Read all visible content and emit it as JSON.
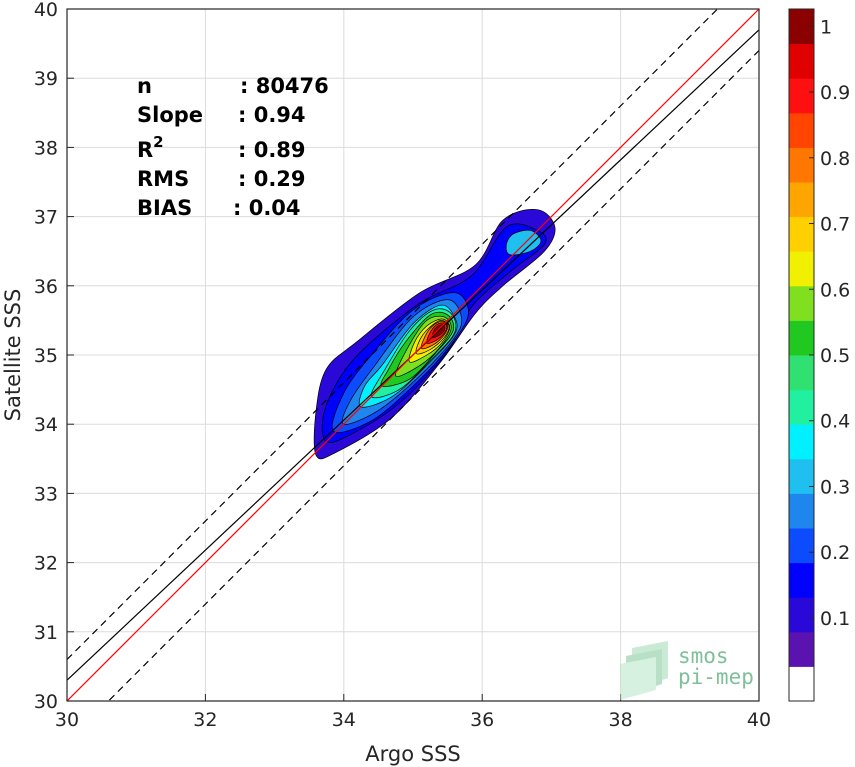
{
  "chart_data": {
    "type": "heatmap",
    "xlabel": "Argo SSS",
    "ylabel": "Satellite SSS",
    "xlim": [
      30,
      40
    ],
    "ylim": [
      30,
      40
    ],
    "xticks": [
      "30",
      "32",
      "34",
      "36",
      "38",
      "40"
    ],
    "yticks": [
      "30",
      "31",
      "32",
      "33",
      "34",
      "35",
      "36",
      "37",
      "38",
      "39",
      "40"
    ],
    "grid": true,
    "stats": [
      {
        "key": "n",
        "value": ": 80476"
      },
      {
        "key": "Slope",
        "value": ": 0.94"
      },
      {
        "key": "R",
        "sup": "2",
        "value": ": 0.89"
      },
      {
        "key": "RMS",
        "value": ": 0.29"
      },
      {
        "key": "BIAS",
        "value": ": 0.04"
      }
    ],
    "lines": [
      {
        "name": "identity",
        "color": "#ff0000",
        "style": "solid",
        "slope": 1.0,
        "intercept": 0.0
      },
      {
        "name": "fit",
        "color": "#000000",
        "style": "solid",
        "slope": 0.94,
        "intercept": 2.1
      },
      {
        "name": "upper",
        "color": "#000000",
        "style": "dashed",
        "slope": 1.0,
        "intercept": 0.6
      },
      {
        "name": "lower",
        "color": "#000000",
        "style": "dashed",
        "slope": 1.0,
        "intercept": -0.6
      }
    ],
    "density_peak": {
      "x": 35.4,
      "y": 35.3
    },
    "colorbar": {
      "min": 0,
      "max": 1,
      "ticks": [
        "0.1",
        "0.2",
        "0.3",
        "0.4",
        "0.5",
        "0.6",
        "0.7",
        "0.8",
        "0.9",
        "1"
      ],
      "colors": [
        "#ffffff",
        "#5a12b0",
        "#2a08d8",
        "#0000ff",
        "#0d4bff",
        "#1f86ee",
        "#1fbff0",
        "#00f0ff",
        "#20f0a0",
        "#30e070",
        "#20c820",
        "#80e020",
        "#f0f000",
        "#ffd000",
        "#ffa500",
        "#ff7700",
        "#ff4500",
        "#ff1010",
        "#e00000",
        "#8b0000"
      ]
    }
  },
  "logo": {
    "line1": "smos",
    "line2": "pi-mep"
  }
}
